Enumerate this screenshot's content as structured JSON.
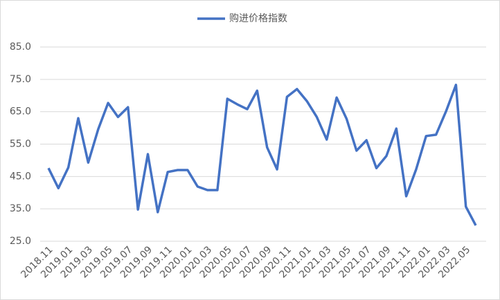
{
  "chart_data": {
    "type": "line",
    "categories": [
      "2018.11",
      null,
      "2019.01",
      null,
      "2019.03",
      null,
      "2019.05",
      null,
      "2019.07",
      null,
      "2019.09",
      null,
      "2019.11",
      null,
      "2020.01",
      null,
      "2020.03",
      null,
      "2020.05",
      null,
      "2020.07",
      null,
      "2020.09",
      null,
      "2020.11",
      null,
      "2021.01",
      null,
      "2021.03",
      null,
      "2021.05",
      null,
      "2021.07",
      null,
      "2021.09",
      null,
      "2021.11",
      null,
      "2022.01",
      null,
      "2022.03",
      null,
      "2022.05",
      null
    ],
    "series": [
      {
        "name": "购进价格指数",
        "color": "#4472c4",
        "values": [
          47.6,
          41.4,
          47.8,
          63.0,
          49.3,
          59.6,
          67.7,
          63.4,
          66.4,
          34.8,
          51.9,
          34.0,
          46.4,
          47.0,
          47.0,
          41.9,
          40.8,
          40.8,
          69.0,
          67.3,
          65.8,
          71.5,
          54.0,
          47.2,
          69.6,
          72.0,
          68.3,
          63.4,
          56.4,
          69.4,
          62.8,
          53.0,
          56.2,
          47.6,
          51.3,
          59.8,
          38.9,
          47.2,
          57.5,
          57.9,
          65.1,
          73.3,
          35.7,
          29.9
        ]
      }
    ],
    "ylim": [
      25,
      85
    ],
    "yticks": [
      {
        "value": 25,
        "label": "25.0"
      },
      {
        "value": 35,
        "label": "35.0"
      },
      {
        "value": 45,
        "label": "45.0"
      },
      {
        "value": 55,
        "label": "55.0"
      },
      {
        "value": 65,
        "label": "65.0"
      },
      {
        "value": 75,
        "label": "75.0"
      },
      {
        "value": 85,
        "label": "85.0"
      }
    ],
    "grid": true,
    "legend": "top"
  }
}
